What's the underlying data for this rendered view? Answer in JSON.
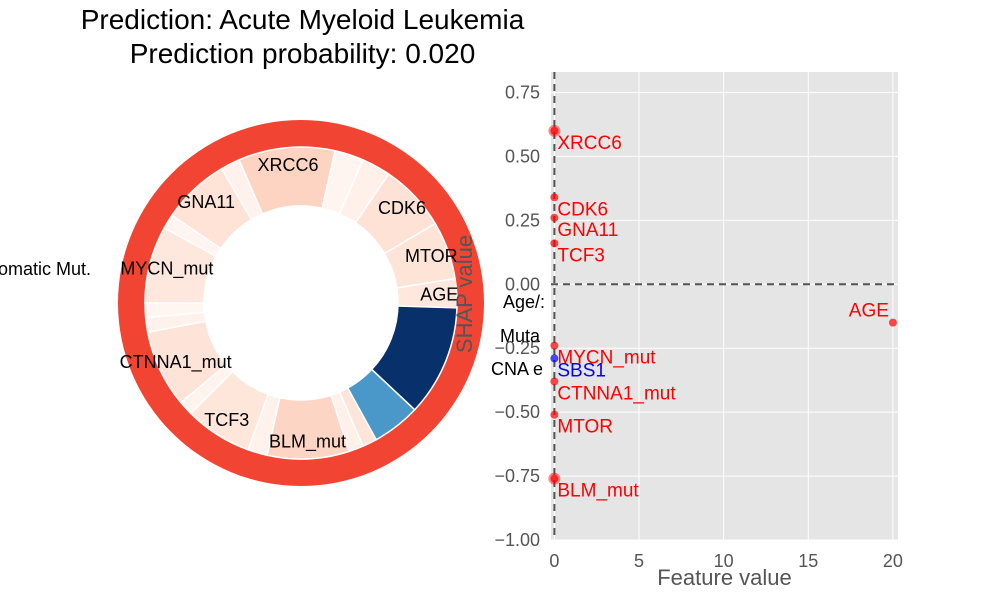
{
  "title": {
    "line1": "Prediction: Acute Myeloid Leukemia",
    "line2": "Prediction probability: 0.020"
  },
  "chart_data": [
    {
      "type": "pie",
      "subtype": "donut",
      "outer_ring": {
        "color": "#f14432",
        "label": ""
      },
      "slices": [
        {
          "label": "",
          "share": 0.12,
          "color": "#08306b"
        },
        {
          "label": "",
          "share": 0.05,
          "color": "#4a98c9"
        },
        {
          "label": "",
          "share": 0.015,
          "color": "#fee5d9"
        },
        {
          "label": "",
          "share": 0.015,
          "color": "#fff0ea"
        },
        {
          "label": "BLM_mut",
          "share": 0.085,
          "color": "#fdd5c4"
        },
        {
          "label": "",
          "share": 0.02,
          "color": "#fff1eb"
        },
        {
          "label": "TCF3",
          "share": 0.07,
          "color": "#fee6da"
        },
        {
          "label": "",
          "share": 0.015,
          "color": "#fff3ee"
        },
        {
          "label": "CTNNA1_mut",
          "share": 0.08,
          "color": "#fee4d8"
        },
        {
          "label": "",
          "share": 0.015,
          "color": "#fff2ed"
        },
        {
          "label": "",
          "share": 0.015,
          "color": "#fff5f1"
        },
        {
          "label": "MYCN_mut",
          "share": 0.08,
          "color": "#fee7dc"
        },
        {
          "label": "",
          "share": 0.015,
          "color": "#fff4ef"
        },
        {
          "label": "GNA11",
          "share": 0.07,
          "color": "#fee3d6"
        },
        {
          "label": "",
          "share": 0.02,
          "color": "#fff2ec"
        },
        {
          "label": "XRCC6",
          "share": 0.1,
          "color": "#fdd4c2"
        },
        {
          "label": "",
          "share": 0.03,
          "color": "#fff5f0"
        },
        {
          "label": "",
          "share": 0.03,
          "color": "#fff0e9"
        },
        {
          "label": "CDK6",
          "share": 0.07,
          "color": "#fee2d5"
        },
        {
          "label": "MTOR",
          "share": 0.06,
          "color": "#fee3d7"
        },
        {
          "label": "AGE",
          "share": 0.03,
          "color": "#fee8de"
        }
      ],
      "clipped_labels": {
        "somatic": "omatic Mut.",
        "age_sbs": "Age/:",
        "muta": "Muta",
        "cna": "CNA e"
      }
    },
    {
      "type": "scatter",
      "xlabel": "Feature value",
      "ylabel": "SHAP value",
      "xlim": [
        -0.2,
        20.3
      ],
      "ylim": [
        -1.0,
        0.83
      ],
      "xticks": [
        0,
        5,
        10,
        15,
        20
      ],
      "yticks": [
        0.75,
        0.5,
        0.25,
        0.0,
        -0.25,
        -0.5,
        -0.75,
        -1.0
      ],
      "ytick_labels": [
        "0.75",
        "0.50",
        "0.25",
        "0.00",
        "−0.25",
        "−0.50",
        "−0.75",
        "−1.00"
      ],
      "xtick_labels": [
        "0",
        "5",
        "10",
        "15",
        "20"
      ],
      "grid": true,
      "reference_lines": {
        "x": 0,
        "y": 0
      },
      "colors": {
        "positive": "#ff0000",
        "negative": "#0000ff",
        "background": "#e5e5e5"
      },
      "points": [
        {
          "label": "XRCC6",
          "x": 0.0,
          "y": 0.6,
          "color": "#ff0000",
          "big": true
        },
        {
          "label": "CDK6",
          "x": 0.0,
          "y": 0.34,
          "color": "#ff0000"
        },
        {
          "label": "GNA11",
          "x": 0.0,
          "y": 0.26,
          "color": "#ff0000"
        },
        {
          "label": "TCF3",
          "x": 0.0,
          "y": 0.16,
          "color": "#ff0000"
        },
        {
          "label": "AGE",
          "x": 20.0,
          "y": -0.15,
          "color": "#ff0000"
        },
        {
          "label": "MYCN_mut",
          "x": 0.0,
          "y": -0.24,
          "color": "#ff0000"
        },
        {
          "label": "SBS1",
          "x": 0.0,
          "y": -0.29,
          "color": "#0000ff"
        },
        {
          "label": "CTNNA1_mut",
          "x": 0.0,
          "y": -0.38,
          "color": "#ff0000"
        },
        {
          "label": "MTOR",
          "x": 0.0,
          "y": -0.51,
          "color": "#ff0000"
        },
        {
          "label": "BLM_mut",
          "x": 0.0,
          "y": -0.76,
          "color": "#ff0000",
          "big": true
        }
      ]
    }
  ]
}
